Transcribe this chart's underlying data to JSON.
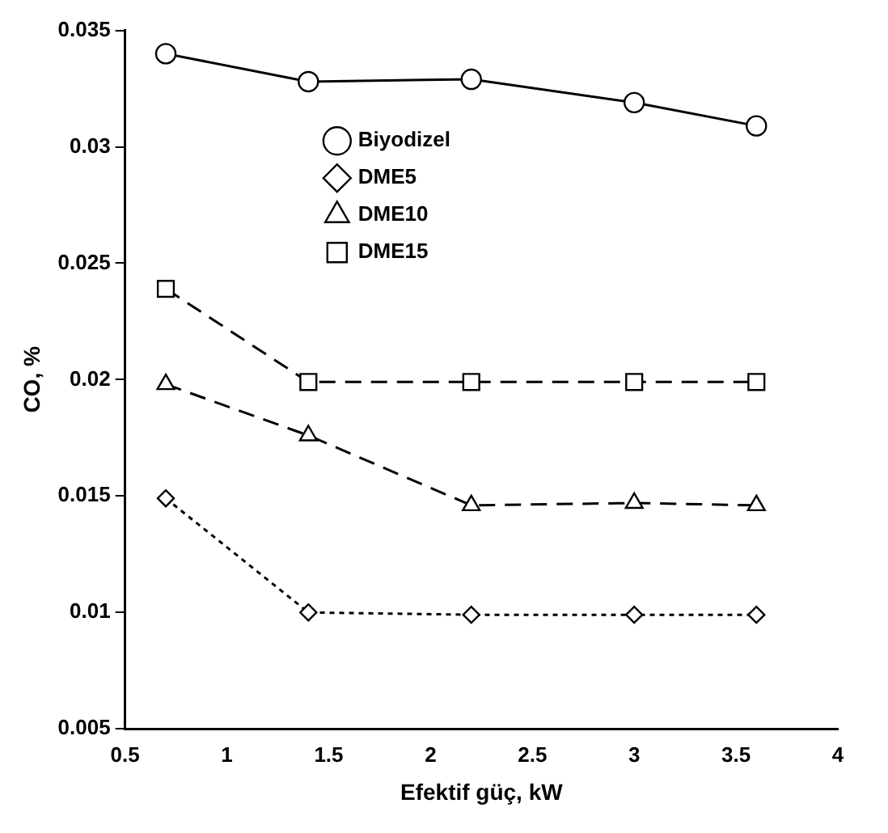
{
  "chart_data": {
    "type": "line",
    "xlabel": "Efektif güç, kW",
    "ylabel": "CO, %",
    "x": [
      0.7,
      1.4,
      2.2,
      3.0,
      3.6
    ],
    "series": [
      {
        "name": "Biyodizel",
        "color": "#000000",
        "values": [
          0.034,
          0.0328,
          0.0329,
          0.0319,
          0.0309
        ],
        "marker": "circle",
        "line_style": "solid"
      },
      {
        "name": "DME5",
        "color": "#000000",
        "values": [
          0.0149,
          0.01,
          0.0099,
          0.0099,
          0.0099
        ],
        "marker": "diamond",
        "line_style": "dotted"
      },
      {
        "name": "DME10",
        "color": "#000000",
        "values": [
          0.0198,
          0.0176,
          0.0146,
          0.0147,
          0.0146
        ],
        "marker": "triangle",
        "line_style": "dashed"
      },
      {
        "name": "DME15",
        "color": "#000000",
        "values": [
          0.0239,
          0.0199,
          0.0199,
          0.0199,
          0.0199
        ],
        "marker": "square",
        "line_style": "dashed"
      }
    ],
    "xlim": [
      0.5,
      4
    ],
    "xticks": [
      0.5,
      1,
      1.5,
      2,
      2.5,
      3,
      3.5,
      4
    ],
    "ylim": [
      0.005,
      0.035
    ],
    "yticks": [
      0.005,
      0.01,
      0.015,
      0.02,
      0.025,
      0.03,
      0.035
    ],
    "grid": false,
    "legend": "top"
  }
}
